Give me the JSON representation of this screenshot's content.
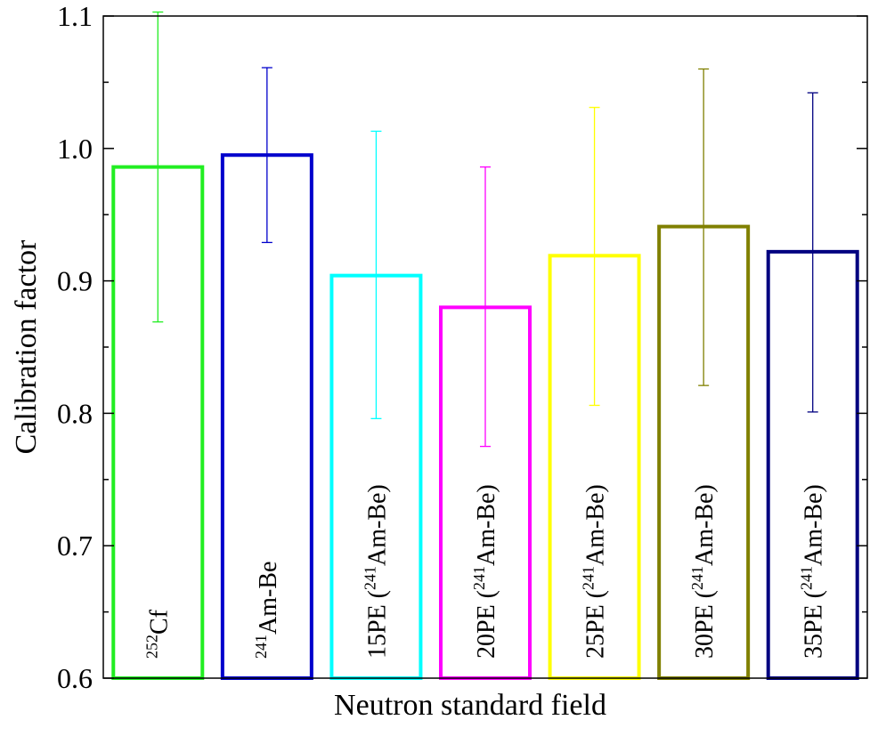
{
  "chart_data": {
    "type": "bar",
    "title": "",
    "xlabel": "Neutron standard field",
    "ylabel": "Calibration factor",
    "ylim": [
      0.6,
      1.1
    ],
    "yticks": [
      "0.6",
      "0.7",
      "0.8",
      "0.9",
      "1.0",
      "1.1"
    ],
    "grid": false,
    "bar_style": "outline",
    "categories": [
      {
        "pre": "",
        "sup": "252",
        "post": "Cf"
      },
      {
        "pre": "",
        "sup": "241",
        "post": "Am-Be"
      },
      {
        "pre": "15PE (",
        "sup": "241",
        "post": "Am-Be)"
      },
      {
        "pre": "20PE (",
        "sup": "241",
        "post": "Am-Be)"
      },
      {
        "pre": "25PE (",
        "sup": "241",
        "post": "Am-Be)"
      },
      {
        "pre": "30PE (",
        "sup": "241",
        "post": "Am-Be)"
      },
      {
        "pre": "35PE (",
        "sup": "241",
        "post": "Am-Be)"
      }
    ],
    "values": [
      0.986,
      0.995,
      0.904,
      0.88,
      0.919,
      0.941,
      0.922
    ],
    "error_upper": [
      1.103,
      1.061,
      1.013,
      0.986,
      1.031,
      1.06,
      1.042
    ],
    "error_lower": [
      0.869,
      0.929,
      0.796,
      0.775,
      0.806,
      0.821,
      0.801
    ],
    "colors": [
      "#22ee22",
      "#0000cc",
      "#00ffff",
      "#ff00ff",
      "#ffff00",
      "#808000",
      "#000080"
    ]
  }
}
